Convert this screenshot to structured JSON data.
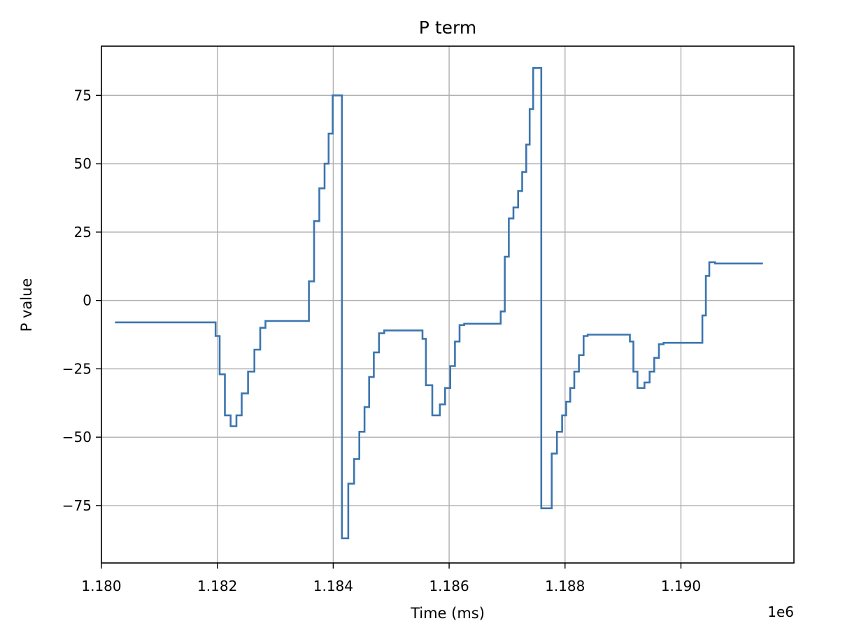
{
  "chart_data": {
    "type": "line",
    "title": "P term",
    "xlabel": "Time (ms)",
    "ylabel": "P value",
    "x_offset_label": "1e6",
    "xlim": [
      1180000,
      1191950
    ],
    "ylim": [
      -96,
      93
    ],
    "xticks": [
      1180000,
      1182000,
      1184000,
      1186000,
      1188000,
      1190000
    ],
    "xtick_labels": [
      "1.180",
      "1.182",
      "1.184",
      "1.186",
      "1.188",
      "1.190"
    ],
    "yticks": [
      -75,
      -50,
      -25,
      0,
      25,
      50,
      75
    ],
    "ytick_labels": [
      "−75",
      "−50",
      "−25",
      "0",
      "25",
      "50",
      "75"
    ],
    "grid": true,
    "series": [
      {
        "color": "#3b75af",
        "step": "post",
        "x": [
          1180250,
          1181970,
          1182040,
          1182130,
          1182230,
          1182330,
          1182420,
          1182530,
          1182640,
          1182740,
          1182830,
          1183580,
          1183670,
          1183760,
          1183850,
          1183920,
          1183990,
          1184080,
          1184150,
          1184200,
          1184260,
          1184360,
          1184450,
          1184540,
          1184620,
          1184700,
          1184790,
          1184880,
          1185540,
          1185600,
          1185710,
          1185840,
          1185930,
          1186020,
          1186100,
          1186180,
          1186260,
          1186890,
          1186960,
          1187030,
          1187110,
          1187190,
          1187260,
          1187330,
          1187390,
          1187450,
          1187520,
          1187590,
          1187680,
          1187710,
          1187770,
          1187860,
          1187950,
          1188020,
          1188090,
          1188160,
          1188240,
          1188320,
          1188390,
          1188460,
          1188540,
          1188640,
          1188740,
          1189120,
          1189180,
          1189250,
          1189370,
          1189460,
          1189540,
          1189620,
          1189700,
          1190370,
          1190430,
          1190490,
          1190590,
          1190670,
          1191400
        ],
        "y": [
          -8,
          -13,
          -27,
          -42,
          -46,
          -42,
          -34,
          -26,
          -18,
          -10,
          -7.5,
          7,
          29,
          41,
          50,
          61,
          75,
          75,
          -87,
          -87,
          -67,
          -58,
          -48,
          -39,
          -28,
          -19,
          -12,
          -11,
          -14,
          -31,
          -42,
          -38,
          -32,
          -24,
          -15,
          -9,
          -8.5,
          -4,
          16,
          30,
          34,
          40,
          47,
          57,
          70,
          85,
          85,
          -76,
          -76,
          -76,
          -56,
          -48,
          -42,
          -37,
          -32,
          -26,
          -20,
          -13,
          -12.5,
          -12.5,
          -12.5,
          -12.5,
          -12.5,
          -15,
          -26,
          -32,
          -30,
          -26,
          -21,
          -16,
          -15.5,
          -5.5,
          9,
          14,
          13.5,
          13.5,
          13.5
        ]
      }
    ]
  }
}
